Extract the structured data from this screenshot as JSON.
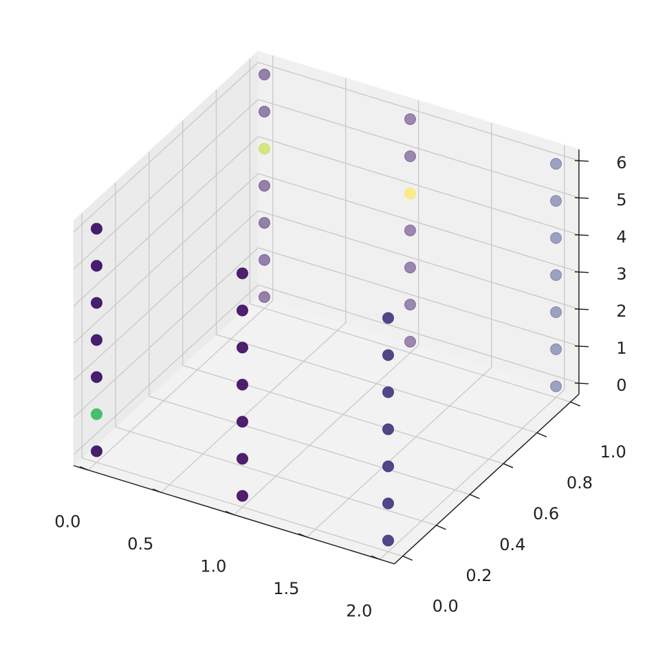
{
  "chart_data": {
    "type": "scatter",
    "projection": "3d",
    "title": "",
    "xlabel": "",
    "ylabel": "",
    "zlabel": "",
    "xlim": [
      -0.1,
      2.1
    ],
    "ylim": [
      -0.05,
      1.05
    ],
    "zlim": [
      -0.3,
      6.3
    ],
    "x_ticks": [
      "0.0",
      "0.5",
      "1.0",
      "1.5",
      "2.0"
    ],
    "y_ticks": [
      "0.0",
      "0.2",
      "0.4",
      "0.6",
      "0.8",
      "1.0"
    ],
    "z_ticks": [
      "0",
      "1",
      "2",
      "3",
      "4",
      "5",
      "6"
    ],
    "grid": true,
    "colormap": "viridis",
    "points": [
      {
        "x": 0,
        "y": 0,
        "z": 0,
        "c": 0.08
      },
      {
        "x": 0,
        "y": 0,
        "z": 1,
        "c": 0.7
      },
      {
        "x": 0,
        "y": 0,
        "z": 2,
        "c": 0.08
      },
      {
        "x": 0,
        "y": 0,
        "z": 3,
        "c": 0.08
      },
      {
        "x": 0,
        "y": 0,
        "z": 4,
        "c": 0.08
      },
      {
        "x": 0,
        "y": 0,
        "z": 5,
        "c": 0.08
      },
      {
        "x": 0,
        "y": 0,
        "z": 6,
        "c": 0.08
      },
      {
        "x": 1,
        "y": 0,
        "z": 0,
        "c": 0.06
      },
      {
        "x": 1,
        "y": 0,
        "z": 1,
        "c": 0.06
      },
      {
        "x": 1,
        "y": 0,
        "z": 2,
        "c": 0.06
      },
      {
        "x": 1,
        "y": 0,
        "z": 3,
        "c": 0.06
      },
      {
        "x": 1,
        "y": 0,
        "z": 4,
        "c": 0.06
      },
      {
        "x": 1,
        "y": 0,
        "z": 5,
        "c": 0.06
      },
      {
        "x": 1,
        "y": 0,
        "z": 6,
        "c": 0.06
      },
      {
        "x": 2,
        "y": 0,
        "z": 0,
        "c": 0.16
      },
      {
        "x": 2,
        "y": 0,
        "z": 1,
        "c": 0.16
      },
      {
        "x": 2,
        "y": 0,
        "z": 2,
        "c": 0.16
      },
      {
        "x": 2,
        "y": 0,
        "z": 3,
        "c": 0.16
      },
      {
        "x": 2,
        "y": 0,
        "z": 4,
        "c": 0.16
      },
      {
        "x": 2,
        "y": 0,
        "z": 5,
        "c": 0.16
      },
      {
        "x": 2,
        "y": 0,
        "z": 6,
        "c": 0.16
      },
      {
        "x": 0,
        "y": 1,
        "z": 0,
        "c": 0.1
      },
      {
        "x": 0,
        "y": 1,
        "z": 1,
        "c": 0.1
      },
      {
        "x": 0,
        "y": 1,
        "z": 2,
        "c": 0.1
      },
      {
        "x": 0,
        "y": 1,
        "z": 3,
        "c": 0.1
      },
      {
        "x": 0,
        "y": 1,
        "z": 4,
        "c": 0.9
      },
      {
        "x": 0,
        "y": 1,
        "z": 5,
        "c": 0.1
      },
      {
        "x": 0,
        "y": 1,
        "z": 6,
        "c": 0.1
      },
      {
        "x": 1,
        "y": 1,
        "z": 0,
        "c": 0.1
      },
      {
        "x": 1,
        "y": 1,
        "z": 1,
        "c": 0.1
      },
      {
        "x": 1,
        "y": 1,
        "z": 2,
        "c": 0.1
      },
      {
        "x": 1,
        "y": 1,
        "z": 3,
        "c": 0.1
      },
      {
        "x": 1,
        "y": 1,
        "z": 4,
        "c": 1.0
      },
      {
        "x": 1,
        "y": 1,
        "z": 5,
        "c": 0.1
      },
      {
        "x": 1,
        "y": 1,
        "z": 6,
        "c": 0.1
      },
      {
        "x": 2,
        "y": 1,
        "z": 0,
        "c": 0.22
      },
      {
        "x": 2,
        "y": 1,
        "z": 1,
        "c": 0.22
      },
      {
        "x": 2,
        "y": 1,
        "z": 2,
        "c": 0.22
      },
      {
        "x": 2,
        "y": 1,
        "z": 3,
        "c": 0.22
      },
      {
        "x": 2,
        "y": 1,
        "z": 4,
        "c": 0.22
      },
      {
        "x": 2,
        "y": 1,
        "z": 5,
        "c": 0.22
      },
      {
        "x": 2,
        "y": 1,
        "z": 6,
        "c": 0.22
      }
    ]
  }
}
